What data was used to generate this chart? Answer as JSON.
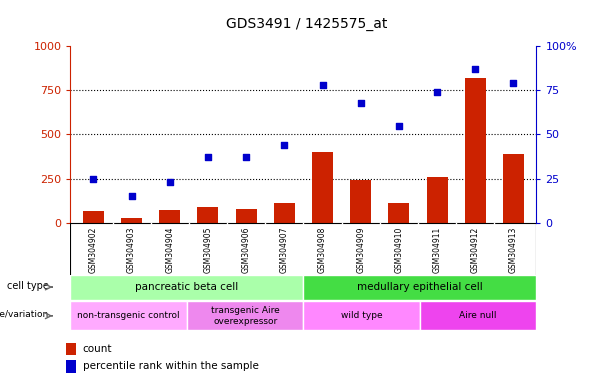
{
  "title": "GDS3491 / 1425575_at",
  "samples": [
    "GSM304902",
    "GSM304903",
    "GSM304904",
    "GSM304905",
    "GSM304906",
    "GSM304907",
    "GSM304908",
    "GSM304909",
    "GSM304910",
    "GSM304911",
    "GSM304912",
    "GSM304913"
  ],
  "counts": [
    65,
    25,
    70,
    90,
    80,
    110,
    400,
    240,
    110,
    260,
    820,
    390
  ],
  "percentile_ranks": [
    25,
    15,
    23,
    37,
    37,
    44,
    78,
    68,
    55,
    74,
    87,
    79
  ],
  "ylim_left": [
    0,
    1000
  ],
  "ylim_right": [
    0,
    100
  ],
  "yticks_left": [
    0,
    250,
    500,
    750,
    1000
  ],
  "yticks_right": [
    0,
    25,
    50,
    75,
    100
  ],
  "bar_color": "#cc2200",
  "dot_color": "#0000cc",
  "count_label": "count",
  "percentile_label": "percentile rank within the sample",
  "cell_type_label": "cell type",
  "genotype_label": "genotype/variation",
  "cell_types": [
    {
      "label": "pancreatic beta cell",
      "start": 0,
      "end": 5,
      "color": "#aaffaa"
    },
    {
      "label": "medullary epithelial cell",
      "start": 6,
      "end": 11,
      "color": "#44dd44"
    }
  ],
  "genotypes": [
    {
      "label": "non-transgenic control",
      "start": 0,
      "end": 2,
      "color": "#ffaaff"
    },
    {
      "label": "transgenic Aire\noverexpressor",
      "start": 3,
      "end": 5,
      "color": "#ee88ee"
    },
    {
      "label": "wild type",
      "start": 6,
      "end": 8,
      "color": "#ff88ff"
    },
    {
      "label": "Aire null",
      "start": 9,
      "end": 11,
      "color": "#ee44ee"
    }
  ],
  "background_color": "#ffffff"
}
